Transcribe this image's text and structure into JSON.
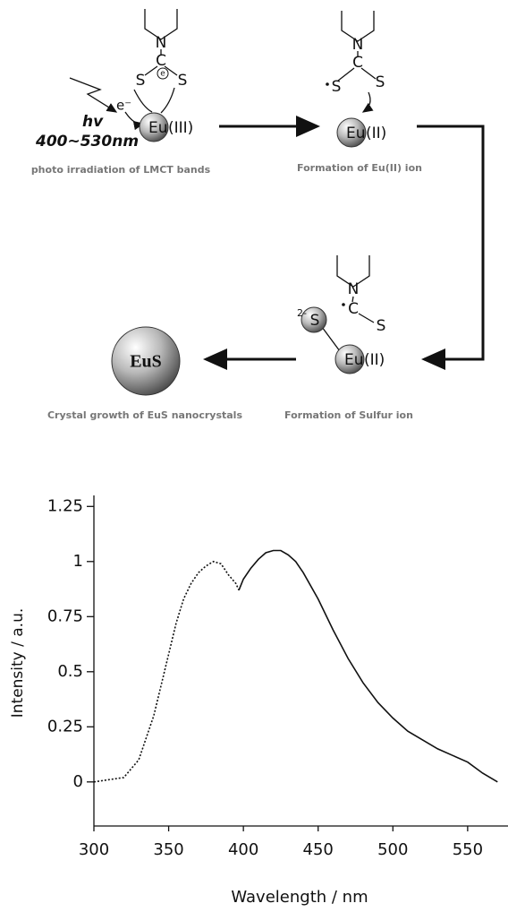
{
  "diagram": {
    "step1": {
      "atoms": [
        "N",
        "C",
        "S",
        "S"
      ],
      "charge": "e",
      "electron": "e⁻",
      "metal": "Eu",
      "metal_state": "(III)",
      "light": "hv",
      "range": "400~530nm",
      "caption": "photo irradiation of LMCT bands"
    },
    "step2": {
      "atoms": [
        "N",
        "C",
        "S",
        "S"
      ],
      "metal": "Eu",
      "metal_state": "(II)",
      "caption": "Formation of Eu(II) ion"
    },
    "step3": {
      "atoms": [
        "N",
        "C",
        "S"
      ],
      "sulfur_charge": "2-",
      "sulfur": "S",
      "metal": "Eu",
      "metal_state": "(II)",
      "caption": "Formation of Sulfur ion"
    },
    "step4": {
      "label": "EuS",
      "caption": "Crystal growth of EuS nanocrystals"
    }
  },
  "chart_data": {
    "type": "line",
    "x_label": "Wavelength / nm",
    "y_label": "Intensity / a.u.",
    "xlim": [
      300,
      577
    ],
    "xticks": [
      300,
      350,
      400,
      450,
      500,
      550
    ],
    "ylim": [
      -0.2,
      1.3
    ],
    "yticks": [
      0,
      0.25,
      0.5,
      0.75,
      1,
      1.25
    ],
    "series": [
      {
        "color": "#111111",
        "line_style": "dotted",
        "x": [
          300,
          310,
          320,
          330,
          340,
          350,
          355,
          360,
          365,
          370,
          375,
          380,
          385,
          390,
          395,
          397
        ],
        "values": [
          0.0,
          0.01,
          0.02,
          0.1,
          0.3,
          0.58,
          0.72,
          0.83,
          0.9,
          0.95,
          0.98,
          1.0,
          0.99,
          0.94,
          0.9,
          0.87
        ]
      },
      {
        "color": "#111111",
        "line_style": "solid",
        "x": [
          397,
          400,
          405,
          410,
          415,
          420,
          425,
          430,
          435,
          440,
          450,
          460,
          470,
          480,
          490,
          500,
          510,
          520,
          530,
          540,
          550,
          560,
          570
        ],
        "values": [
          0.87,
          0.92,
          0.97,
          1.01,
          1.04,
          1.05,
          1.05,
          1.03,
          1.0,
          0.95,
          0.83,
          0.69,
          0.56,
          0.45,
          0.36,
          0.29,
          0.23,
          0.19,
          0.15,
          0.12,
          0.09,
          0.04,
          0.0
        ]
      }
    ]
  }
}
